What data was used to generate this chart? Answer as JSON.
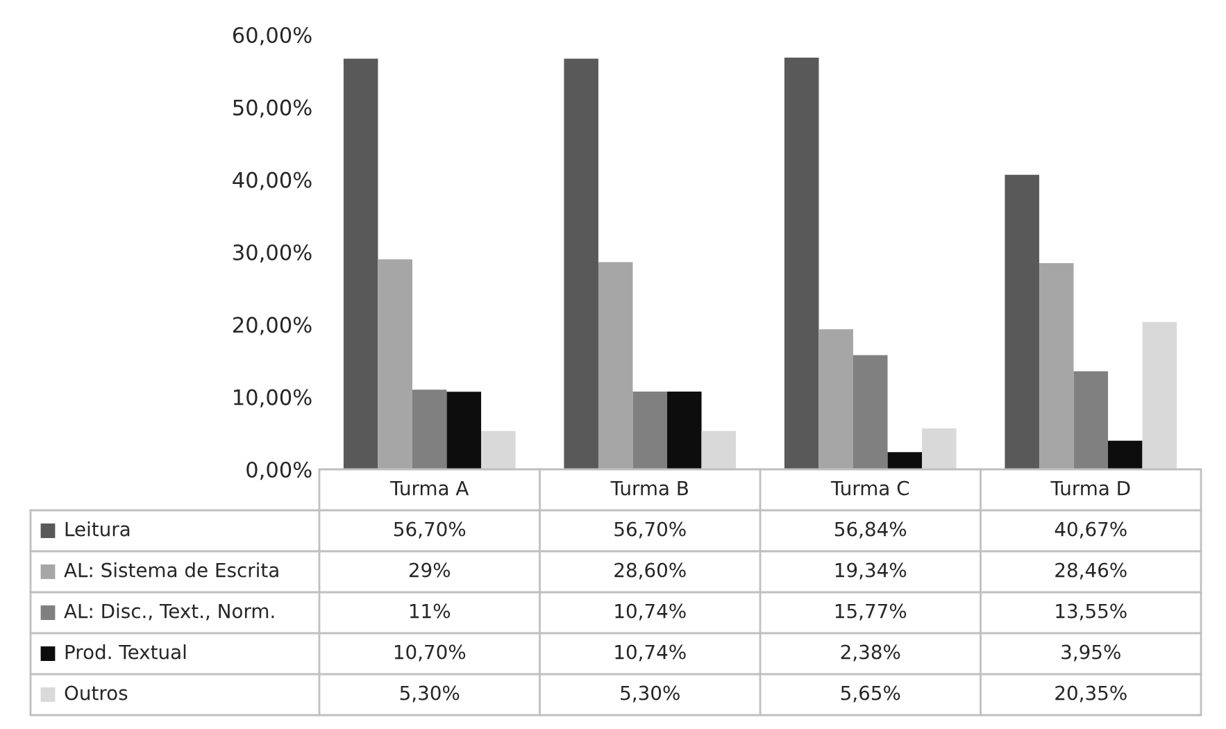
{
  "chart_data": {
    "type": "bar",
    "categories": [
      "Turma A",
      "Turma B",
      "Turma C",
      "Turma D"
    ],
    "series": [
      {
        "name": "Leitura",
        "color": "#595959",
        "values": [
          56.7,
          56.7,
          56.84,
          40.67
        ],
        "value_labels": [
          "56,70%",
          "56,70%",
          "56,84%",
          "40,67%"
        ]
      },
      {
        "name": "AL: Sistema de Escrita",
        "color": "#a6a6a6",
        "values": [
          29,
          28.6,
          19.34,
          28.46
        ],
        "value_labels": [
          "29%",
          "28,60%",
          "19,34%",
          "28,46%"
        ]
      },
      {
        "name": "AL: Disc., Text., Norm.",
        "color": "#808080",
        "values": [
          11,
          10.74,
          15.77,
          13.55
        ],
        "value_labels": [
          "11%",
          "10,74%",
          "15,77%",
          "13,55%"
        ]
      },
      {
        "name": "Prod. Textual",
        "color": "#0d0d0d",
        "values": [
          10.7,
          10.74,
          2.38,
          3.95
        ],
        "value_labels": [
          "10,70%",
          "10,74%",
          "2,38%",
          "3,95%"
        ]
      },
      {
        "name": "Outros",
        "color": "#d9d9d9",
        "values": [
          5.3,
          5.3,
          5.65,
          20.35
        ],
        "value_labels": [
          "5,30%",
          "5,30%",
          "5,65%",
          "20,35%"
        ]
      }
    ],
    "ylim": [
      0,
      60
    ],
    "yticks": [
      {
        "value": 0,
        "label": "0,00%"
      },
      {
        "value": 10,
        "label": "10,00%"
      },
      {
        "value": 20,
        "label": "20,00%"
      },
      {
        "value": 30,
        "label": "30,00%"
      },
      {
        "value": 40,
        "label": "40,00%"
      },
      {
        "value": 50,
        "label": "50,00%"
      },
      {
        "value": 60,
        "label": "60,00%"
      }
    ],
    "grid": false,
    "legend": "bottom"
  }
}
